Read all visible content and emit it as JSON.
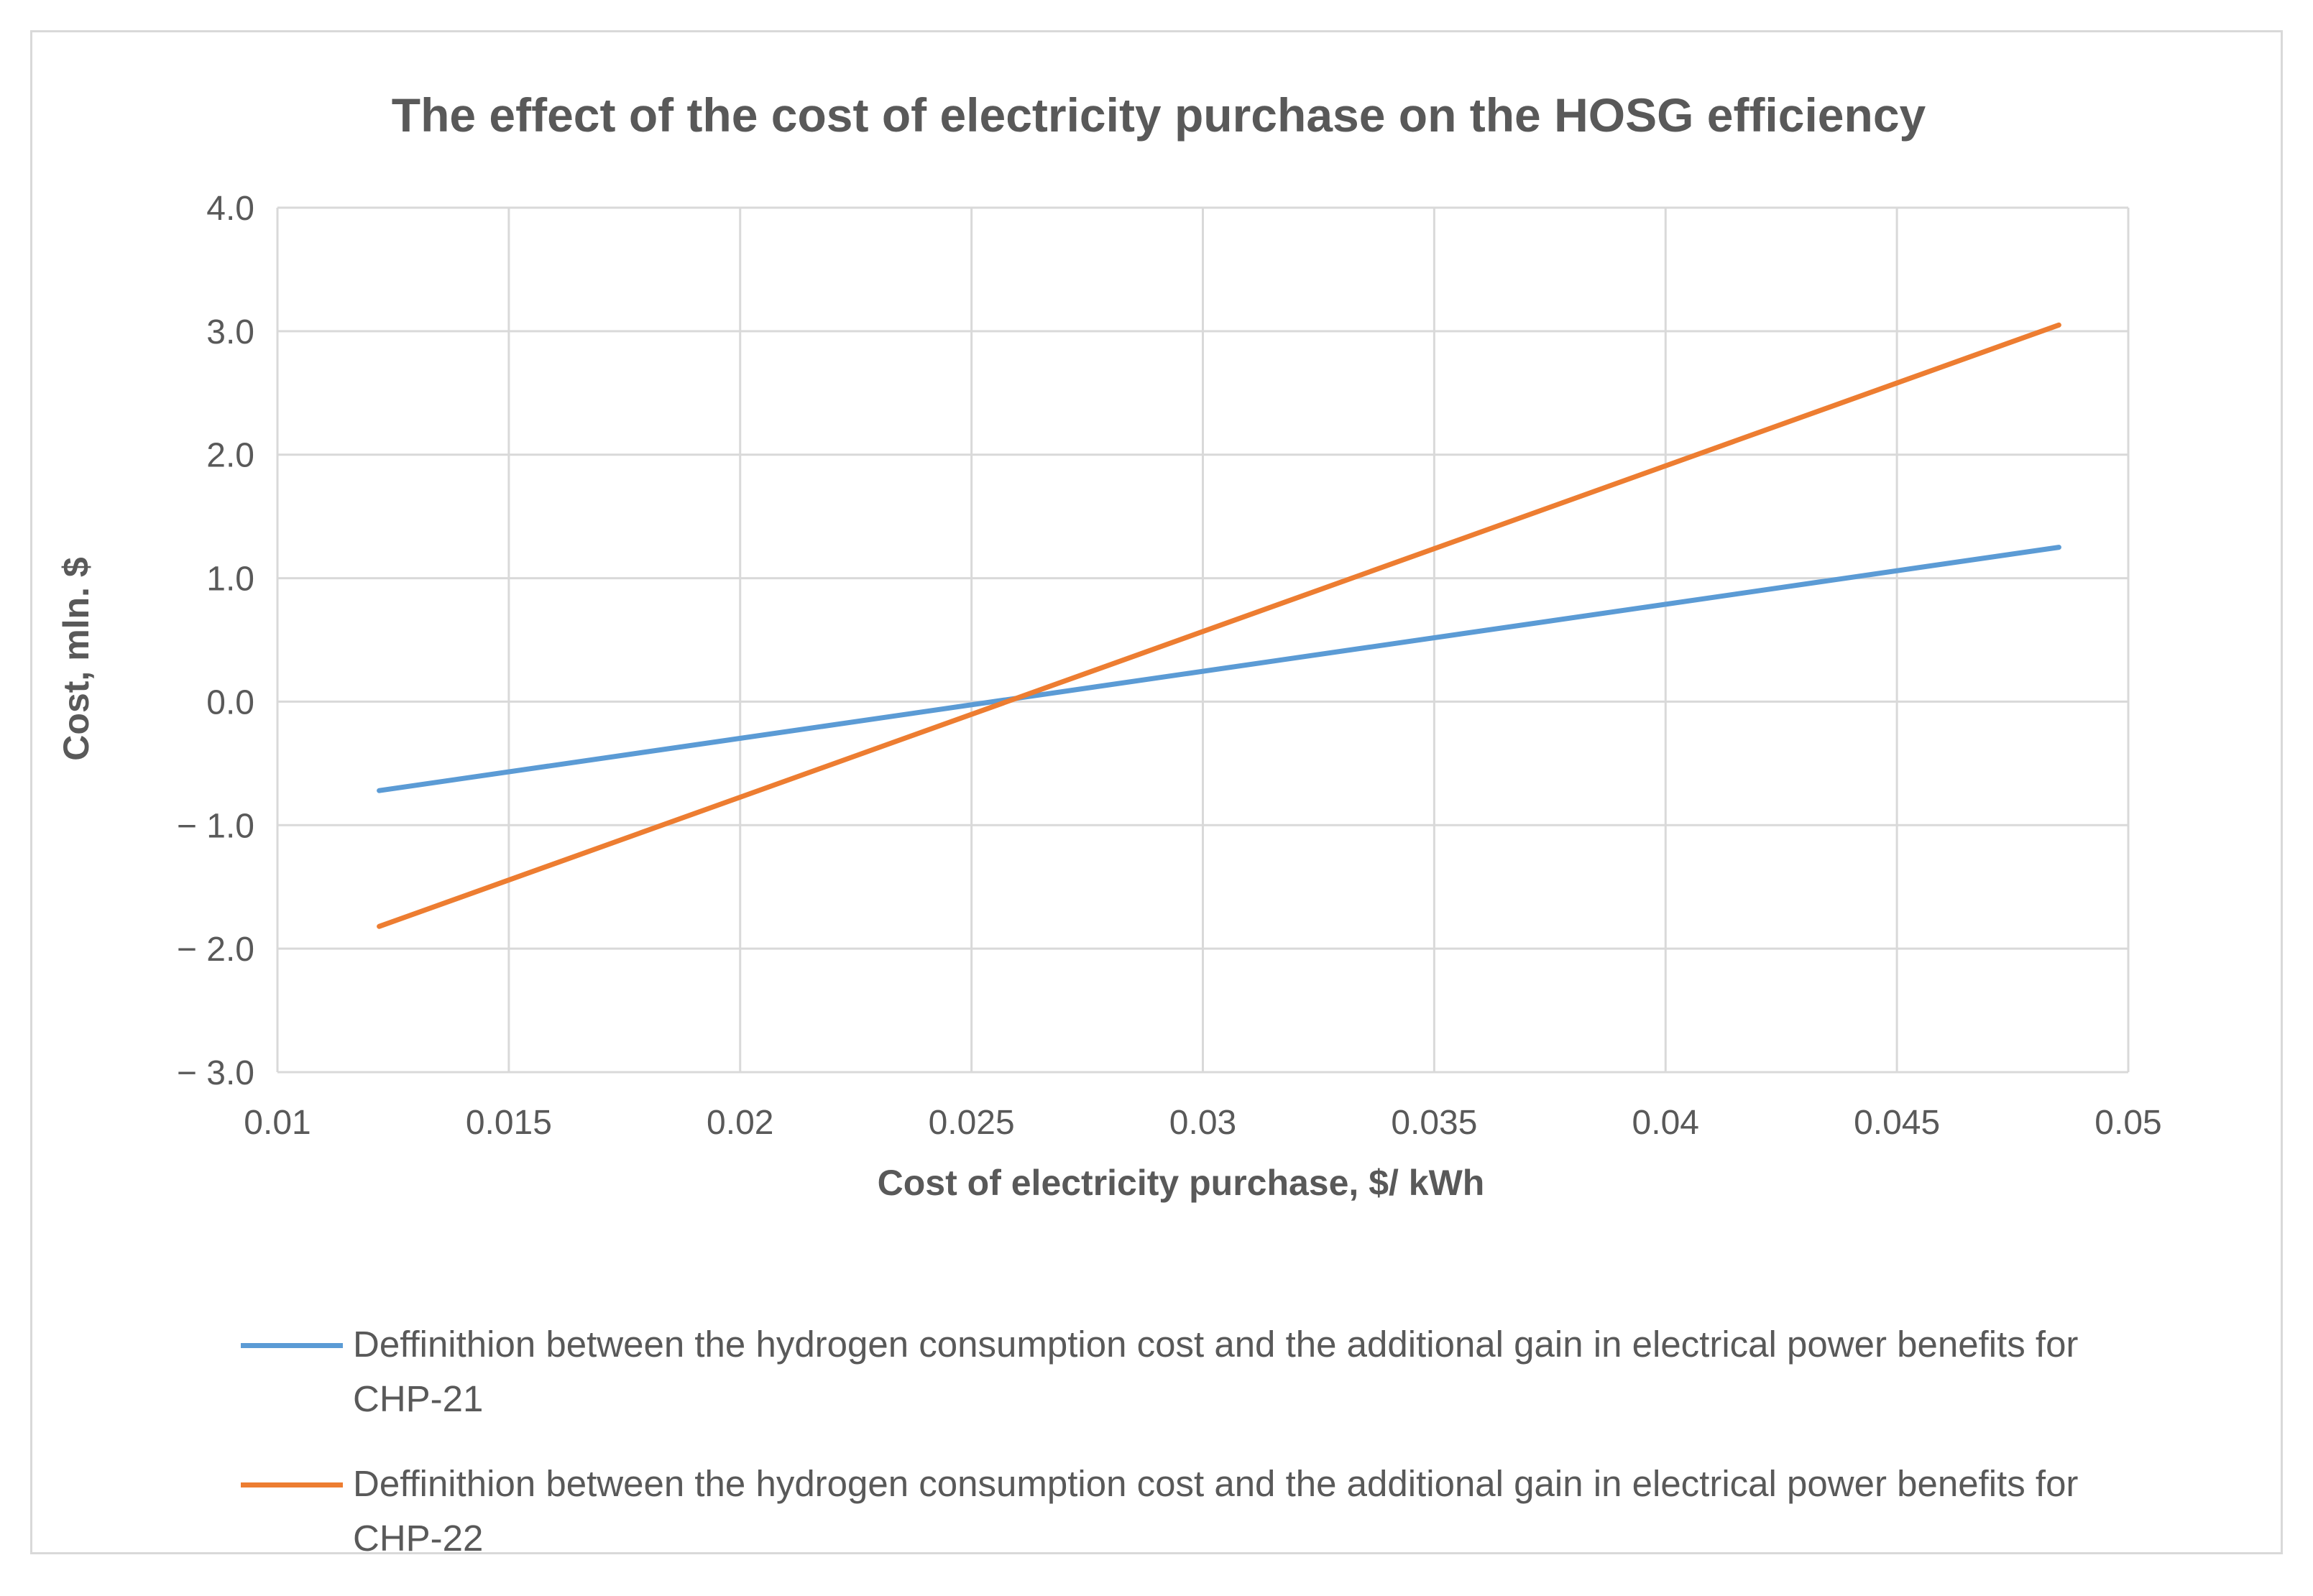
{
  "chart_data": {
    "type": "line",
    "title": "The effect of the cost of electricity purchase on the HOSG efficiency",
    "xlabel": "Cost of electricity purchase, $/ kWh",
    "ylabel": "Cost, mln. $",
    "xlim": [
      0.01,
      0.05
    ],
    "ylim": [
      -3.0,
      4.0
    ],
    "x_ticks": [
      0.01,
      0.015,
      0.02,
      0.025,
      0.03,
      0.035,
      0.04,
      0.045,
      0.05
    ],
    "x_tick_labels": [
      "0.01",
      "0.015",
      "0.02",
      "0.025",
      "0.03",
      "0.035",
      "0.04",
      "0.045",
      "0.05"
    ],
    "y_ticks": [
      4.0,
      3.0,
      2.0,
      1.0,
      0.0,
      -1.0,
      -2.0,
      -3.0
    ],
    "y_tick_labels": [
      "4.0",
      "3.0",
      "2.0",
      "1.0",
      "0.0",
      "− 1.0",
      "− 2.0",
      "− 3.0"
    ],
    "grid": true,
    "legend_position": "bottom",
    "series": [
      {
        "name": "Deffinithion between the hydrogen consumption cost and the additional gain in electrical power benefits for CHP-21",
        "color": "#5b9bd5",
        "x": [
          0.0122,
          0.0485
        ],
        "y": [
          -0.72,
          1.25
        ]
      },
      {
        "name": "Deffinithion between the hydrogen consumption cost and the additional gain in electrical power benefits for CHP-22",
        "color": "#ed7d31",
        "x": [
          0.0122,
          0.0485
        ],
        "y": [
          -1.82,
          3.05
        ]
      }
    ]
  }
}
